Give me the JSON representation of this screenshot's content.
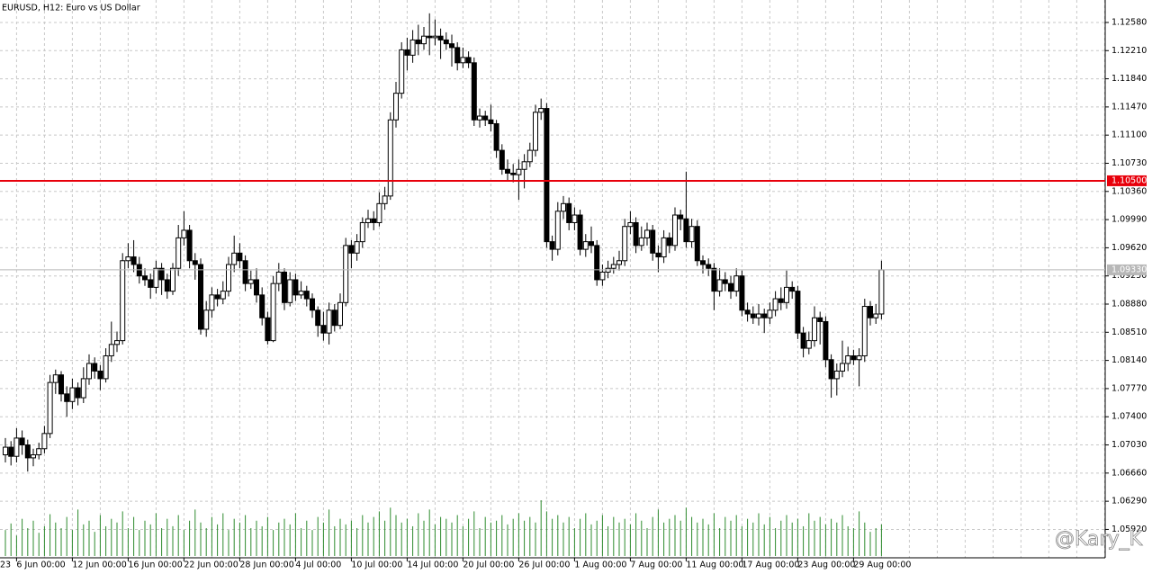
{
  "chart_data": {
    "type": "candlestick",
    "title": "EURUSD, H12:  Euro vs US Dollar",
    "watermark": "@Kary_K",
    "first_date_fragment": "23",
    "categories": [
      null,
      null,
      "6 Jun 00:00",
      null,
      null,
      null,
      null,
      null,
      null,
      null,
      null,
      null,
      "12 Jun 00:00",
      null,
      null,
      null,
      null,
      null,
      null,
      null,
      null,
      null,
      "16 Jun 00:00",
      null,
      null,
      null,
      null,
      null,
      null,
      null,
      null,
      null,
      "22 Jun 00:00",
      null,
      null,
      null,
      null,
      null,
      null,
      null,
      null,
      null,
      "28 Jun 00:00",
      null,
      null,
      null,
      null,
      null,
      null,
      null,
      null,
      null,
      "4 Jul 00:00",
      null,
      null,
      null,
      null,
      null,
      null,
      null,
      null,
      null,
      "10 Jul 00:00",
      null,
      null,
      null,
      null,
      null,
      null,
      null,
      null,
      null,
      "14 Jul 00:00",
      null,
      null,
      null,
      null,
      null,
      null,
      null,
      null,
      null,
      "20 Jul 00:00",
      null,
      null,
      null,
      null,
      null,
      null,
      null,
      null,
      null,
      "26 Jul 00:00",
      null,
      null,
      null,
      null,
      null,
      null,
      null,
      null,
      null,
      "1 Aug 00:00",
      null,
      null,
      null,
      null,
      null,
      null,
      null,
      null,
      null,
      "7 Aug 00:00",
      null,
      null,
      null,
      null,
      null,
      null,
      null,
      null,
      null,
      "11 Aug 00:00",
      null,
      null,
      null,
      null,
      null,
      null,
      null,
      null,
      null,
      "17 Aug 00:00",
      null,
      null,
      null,
      null,
      null,
      null,
      null,
      null,
      null,
      "23 Aug 00:00",
      null,
      null,
      null,
      null,
      null,
      null,
      null,
      null,
      null,
      "29 Aug 00:00",
      null,
      null,
      null,
      null,
      null
    ],
    "open": [
      1.069,
      1.07,
      1.0688,
      1.0712,
      1.0703,
      1.0686,
      1.069,
      1.0698,
      1.0718,
      1.0785,
      1.0795,
      1.077,
      1.076,
      1.0778,
      1.0765,
      1.079,
      1.081,
      1.08,
      1.079,
      1.082,
      1.0835,
      1.084,
      1.0945,
      1.095,
      1.094,
      1.0925,
      1.092,
      1.091,
      1.0935,
      1.092,
      1.0905,
      1.0935,
      1.0975,
      1.0985,
      1.0945,
      1.094,
      1.0855,
      1.088,
      1.09,
      1.0895,
      1.0905,
      1.094,
      1.0955,
      1.0945,
      1.0915,
      1.092,
      1.09,
      1.087,
      1.084,
      1.0915,
      1.093,
      1.089,
      1.092,
      1.09,
      1.0905,
      1.0895,
      1.088,
      1.086,
      1.085,
      1.088,
      1.086,
      1.089,
      1.0965,
      1.0955,
      1.097,
      1.0995,
      1.1,
      1.0995,
      1.102,
      1.103,
      1.113,
      1.1165,
      1.1222,
      1.1215,
      1.1235,
      1.123,
      1.124,
      1.1238,
      1.124,
      1.1235,
      1.123,
      1.1225,
      1.1205,
      1.1212,
      1.1205,
      1.113,
      1.1135,
      1.113,
      1.1125,
      1.109,
      1.1065,
      1.106,
      1.1058,
      1.1065,
      1.1075,
      1.109,
      1.114,
      1.1145,
      1.097,
      1.096,
      1.101,
      1.102,
      1.0995,
      1.1005,
      1.096,
      1.097,
      1.0965,
      1.092,
      1.093,
      1.0935,
      1.094,
      1.0945,
      1.099,
      1.0995,
      1.0965,
      1.0975,
      1.0985,
      1.0955,
      1.095,
      1.0975,
      1.0965,
      1.1005,
      1.1,
      1.097,
      1.099,
      1.0945,
      1.094,
      1.0935,
      1.0905,
      1.092,
      1.0915,
      1.0905,
      1.0925,
      1.088,
      1.0875,
      1.087,
      1.0875,
      1.087,
      1.088,
      1.0895,
      1.089,
      1.091,
      1.0905,
      1.085,
      1.083,
      1.084,
      1.087,
      1.0865,
      1.0815,
      1.079,
      1.08,
      1.081,
      1.082,
      1.0815,
      1.082,
      1.0885,
      1.087,
      1.0875
    ],
    "high": [
      1.0712,
      1.0708,
      1.0725,
      1.0722,
      1.071,
      1.0698,
      1.0706,
      1.0728,
      1.0795,
      1.0802,
      1.08,
      1.078,
      1.079,
      1.0785,
      1.0805,
      1.0822,
      1.0818,
      1.0808,
      1.083,
      1.0865,
      1.0852,
      1.0955,
      1.0968,
      1.0972,
      1.095,
      1.0935,
      1.0928,
      1.0945,
      1.0942,
      1.0928,
      1.0942,
      1.0992,
      1.101,
      1.0992,
      1.0955,
      1.0948,
      1.0892,
      1.091,
      1.0908,
      1.0918,
      1.095,
      1.0978,
      1.0968,
      1.0952,
      1.0932,
      1.0935,
      1.091,
      1.0878,
      1.0925,
      1.0942,
      1.0935,
      1.093,
      1.0928,
      1.0918,
      1.0912,
      1.0902,
      1.0885,
      1.0878,
      1.089,
      1.0888,
      1.0902,
      1.0975,
      1.0972,
      1.098,
      1.1002,
      1.1012,
      1.101,
      1.1035,
      1.1042,
      1.114,
      1.118,
      1.1232,
      1.1238,
      1.1248,
      1.1255,
      1.1252,
      1.127,
      1.1262,
      1.125,
      1.1245,
      1.1242,
      1.1232,
      1.1225,
      1.122,
      1.1212,
      1.1145,
      1.1142,
      1.115,
      1.113,
      1.1098,
      1.1078,
      1.1072,
      1.1078,
      1.1085,
      1.11,
      1.115,
      1.1158,
      1.1152,
      1.0978,
      1.1022,
      1.103,
      1.1028,
      1.1015,
      1.1012,
      1.098,
      1.099,
      1.0972,
      1.094,
      1.0945,
      1.095,
      1.0958,
      1.1,
      1.101,
      1.1002,
      1.099,
      1.0995,
      1.0992,
      1.0965,
      1.0985,
      1.0982,
      1.1015,
      1.1012,
      1.1062,
      1.1,
      1.0998,
      1.0952,
      1.0948,
      1.0942,
      1.0935,
      1.093,
      1.0925,
      1.0935,
      1.0932,
      1.089,
      1.0885,
      1.0888,
      1.0882,
      1.089,
      1.0905,
      1.091,
      1.0932,
      1.0918,
      1.0912,
      1.0858,
      1.0852,
      1.0885,
      1.0878,
      1.0872,
      1.0822,
      1.081,
      1.084,
      1.0832,
      1.0828,
      1.083,
      1.0895,
      1.0892,
      1.0888,
      1.0945
    ],
    "low": [
      1.068,
      1.0676,
      1.068,
      1.069,
      1.0668,
      1.0675,
      1.0684,
      1.0692,
      1.0712,
      1.077,
      1.076,
      1.074,
      1.075,
      1.0755,
      1.0758,
      1.0782,
      1.079,
      1.0775,
      1.0785,
      1.0812,
      1.0825,
      1.0835,
      1.0935,
      1.093,
      1.0915,
      1.0912,
      1.0895,
      1.0902,
      1.09,
      1.0895,
      1.09,
      1.0925,
      1.0965,
      1.0935,
      1.092,
      1.0848,
      1.0845,
      1.087,
      1.0885,
      1.0888,
      1.0898,
      1.093,
      1.0935,
      1.0905,
      1.0908,
      1.089,
      1.086,
      1.0835,
      1.0838,
      1.0905,
      1.088,
      1.0885,
      1.0892,
      1.0895,
      1.0885,
      1.087,
      1.0845,
      1.084,
      1.0835,
      1.0852,
      1.0855,
      1.0885,
      1.0935,
      1.0945,
      1.0962,
      1.0988,
      1.0985,
      1.099,
      1.1012,
      1.1025,
      1.112,
      1.1158,
      1.1195,
      1.1205,
      1.1215,
      1.1222,
      1.1215,
      1.1228,
      1.121,
      1.1222,
      1.12,
      1.1195,
      1.1198,
      1.1198,
      1.1122,
      1.112,
      1.1122,
      1.1115,
      1.108,
      1.1058,
      1.105,
      1.1048,
      1.1025,
      1.104,
      1.1068,
      1.1082,
      1.113,
      1.0962,
      1.0945,
      1.0952,
      1.1,
      1.0985,
      1.0985,
      1.0952,
      1.095,
      1.0955,
      1.0912,
      1.0912,
      1.0922,
      1.0928,
      1.0932,
      1.0938,
      1.098,
      1.0955,
      1.0958,
      1.0965,
      1.0945,
      1.093,
      1.0942,
      1.0955,
      1.0958,
      1.0985,
      1.0962,
      1.0962,
      1.0938,
      1.0928,
      1.0925,
      1.088,
      1.0898,
      1.0905,
      1.0895,
      1.0898,
      1.0872,
      1.0865,
      1.0862,
      1.086,
      1.085,
      1.0862,
      1.0872,
      1.088,
      1.0882,
      1.0895,
      1.0842,
      1.0818,
      1.0822,
      1.0832,
      1.0835,
      1.0805,
      1.0765,
      1.0768,
      1.0792,
      1.08,
      1.0808,
      1.078,
      1.0812,
      1.086,
      1.0862,
      1.0868
    ],
    "close": [
      1.07,
      1.0688,
      1.0712,
      1.0703,
      1.0686,
      1.069,
      1.0698,
      1.0718,
      1.0785,
      1.0795,
      1.077,
      1.076,
      1.0778,
      1.0765,
      1.079,
      1.081,
      1.08,
      1.079,
      1.082,
      1.0835,
      1.084,
      1.0945,
      1.095,
      1.094,
      1.0925,
      1.092,
      1.091,
      1.0935,
      1.092,
      1.0905,
      1.0935,
      1.0975,
      1.0985,
      1.0945,
      1.094,
      1.0855,
      1.088,
      1.09,
      1.0895,
      1.0905,
      1.094,
      1.0955,
      1.0945,
      1.0915,
      1.092,
      1.09,
      1.087,
      1.084,
      1.0915,
      1.093,
      1.089,
      1.092,
      1.09,
      1.0905,
      1.0895,
      1.088,
      1.086,
      1.085,
      1.088,
      1.086,
      1.089,
      1.0965,
      1.0955,
      1.097,
      1.0995,
      1.1,
      1.0995,
      1.102,
      1.103,
      1.113,
      1.1165,
      1.1222,
      1.1215,
      1.1235,
      1.123,
      1.124,
      1.1238,
      1.124,
      1.1235,
      1.123,
      1.1225,
      1.1205,
      1.1212,
      1.1205,
      1.113,
      1.1135,
      1.113,
      1.1125,
      1.109,
      1.1065,
      1.106,
      1.1058,
      1.1065,
      1.1075,
      1.109,
      1.114,
      1.1145,
      1.097,
      1.096,
      1.101,
      1.102,
      1.0995,
      1.1005,
      1.096,
      1.097,
      1.0965,
      1.092,
      1.093,
      1.0935,
      1.094,
      1.0945,
      1.099,
      1.0995,
      1.0965,
      1.0975,
      1.0985,
      1.0955,
      1.095,
      1.0975,
      1.0965,
      1.1005,
      1.1,
      1.097,
      1.099,
      1.0945,
      1.094,
      1.0935,
      1.0905,
      1.092,
      1.0915,
      1.0905,
      1.0925,
      1.088,
      1.0875,
      1.087,
      1.0875,
      1.087,
      1.088,
      1.0895,
      1.089,
      1.091,
      1.0905,
      1.085,
      1.083,
      1.084,
      1.087,
      1.0865,
      1.0815,
      1.079,
      1.08,
      1.081,
      1.082,
      1.0815,
      1.082,
      1.0885,
      1.087,
      1.0875,
      1.0933
    ],
    "volume": [
      28,
      35,
      22,
      40,
      30,
      38,
      25,
      32,
      45,
      36,
      30,
      42,
      28,
      50,
      34,
      38,
      26,
      44,
      32,
      40,
      36,
      48,
      30,
      42,
      28,
      38,
      34,
      46,
      30,
      40,
      32,
      44,
      28,
      38,
      50,
      36,
      30,
      42,
      34,
      46,
      28,
      40,
      36,
      44,
      30,
      38,
      32,
      42,
      28,
      36,
      40,
      34,
      46,
      30,
      38,
      28,
      42,
      36,
      50,
      32,
      40,
      34,
      38,
      30,
      44,
      36,
      42,
      48,
      38,
      52,
      44,
      36,
      40,
      32,
      46,
      38,
      50,
      34,
      42,
      40,
      36,
      44,
      32,
      40,
      48,
      30,
      42,
      36,
      38,
      44,
      34,
      40,
      46,
      38,
      42,
      36,
      60,
      48,
      40,
      44,
      36,
      42,
      30,
      40,
      46,
      34,
      38,
      44,
      32,
      42,
      36,
      40,
      34,
      46,
      38,
      30,
      42,
      50,
      36,
      40,
      44,
      38,
      52,
      42,
      36,
      40,
      34,
      46,
      30,
      42,
      38,
      44,
      32,
      40,
      36,
      46,
      34,
      42,
      30,
      38,
      44,
      36,
      40,
      32,
      46,
      38,
      42,
      34,
      40,
      36,
      44,
      32,
      30,
      48,
      36,
      26,
      30,
      34
    ],
    "volume_color": "#2e8b2e",
    "bull_color": "#ffffff",
    "bear_color": "#000000",
    "ylim": [
      1.05547,
      1.12875
    ],
    "yticks": [
      {
        "value": 1.1258,
        "label": "1.12580"
      },
      {
        "value": 1.1221,
        "label": "1.12210"
      },
      {
        "value": 1.1184,
        "label": "1.11840"
      },
      {
        "value": 1.1147,
        "label": "1.11470"
      },
      {
        "value": 1.111,
        "label": "1.11100"
      },
      {
        "value": 1.1073,
        "label": "1.10730"
      },
      {
        "value": 1.1036,
        "label": "1.10360"
      },
      {
        "value": 1.0999,
        "label": "1.09990"
      },
      {
        "value": 1.0962,
        "label": "1.09620"
      },
      {
        "value": 1.0925,
        "label": "1.09250"
      },
      {
        "value": 1.0888,
        "label": "1.08880"
      },
      {
        "value": 1.0851,
        "label": "1.08510"
      },
      {
        "value": 1.0814,
        "label": "1.08140"
      },
      {
        "value": 1.0777,
        "label": "1.07770"
      },
      {
        "value": 1.074,
        "label": "1.07400"
      },
      {
        "value": 1.0703,
        "label": "1.07030"
      },
      {
        "value": 1.0666,
        "label": "1.06660"
      },
      {
        "value": 1.0629,
        "label": "1.06290"
      },
      {
        "value": 1.0592,
        "label": "1.05920"
      }
    ],
    "grid": true,
    "level_line": {
      "value": 1.105,
      "label": "1.10500",
      "color": "#e8000b"
    },
    "price_line": {
      "value": 1.0933,
      "label": "1.09330",
      "color": "#b8b8b8"
    }
  }
}
